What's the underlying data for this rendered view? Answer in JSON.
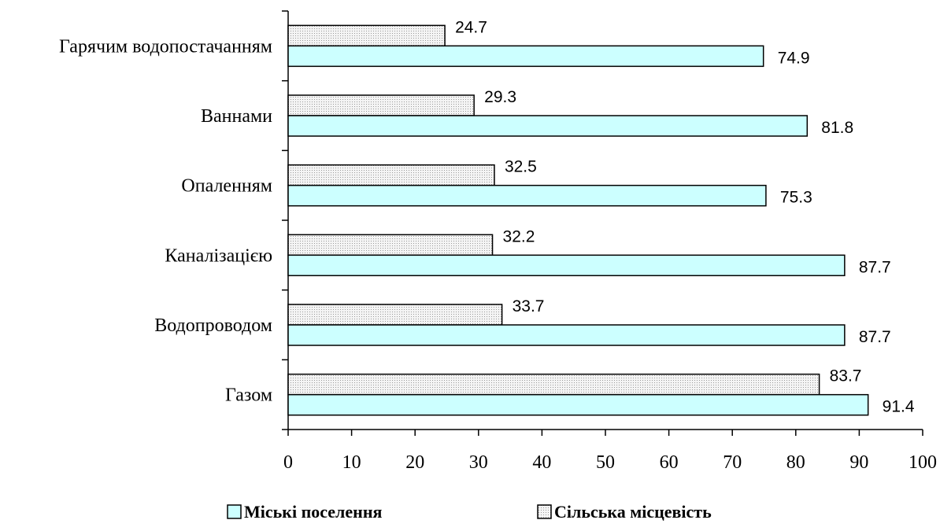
{
  "chart_data": {
    "type": "bar",
    "orientation": "horizontal",
    "categories": [
      "Газом",
      "Водопроводом",
      "Каналізацією",
      "Опаленням",
      "Ваннами",
      "Гарячим водопостачанням"
    ],
    "series": [
      {
        "name": "Міські поселення",
        "values": [
          91.4,
          87.7,
          87.7,
          75.3,
          81.8,
          74.9
        ],
        "color": "#ccffff",
        "pattern": "solid"
      },
      {
        "name": "Сільська місцевість",
        "values": [
          83.7,
          33.7,
          32.2,
          32.5,
          29.3,
          24.7
        ],
        "color": "#f2f2f2",
        "pattern": "dotted"
      }
    ],
    "xlim": [
      0,
      100
    ],
    "xticks": [
      0,
      10,
      20,
      30,
      40,
      50,
      60,
      70,
      80,
      90,
      100
    ],
    "xlabel": "",
    "ylabel": "",
    "title": "",
    "grid": false,
    "data_labels": true,
    "legend": "bottom"
  }
}
